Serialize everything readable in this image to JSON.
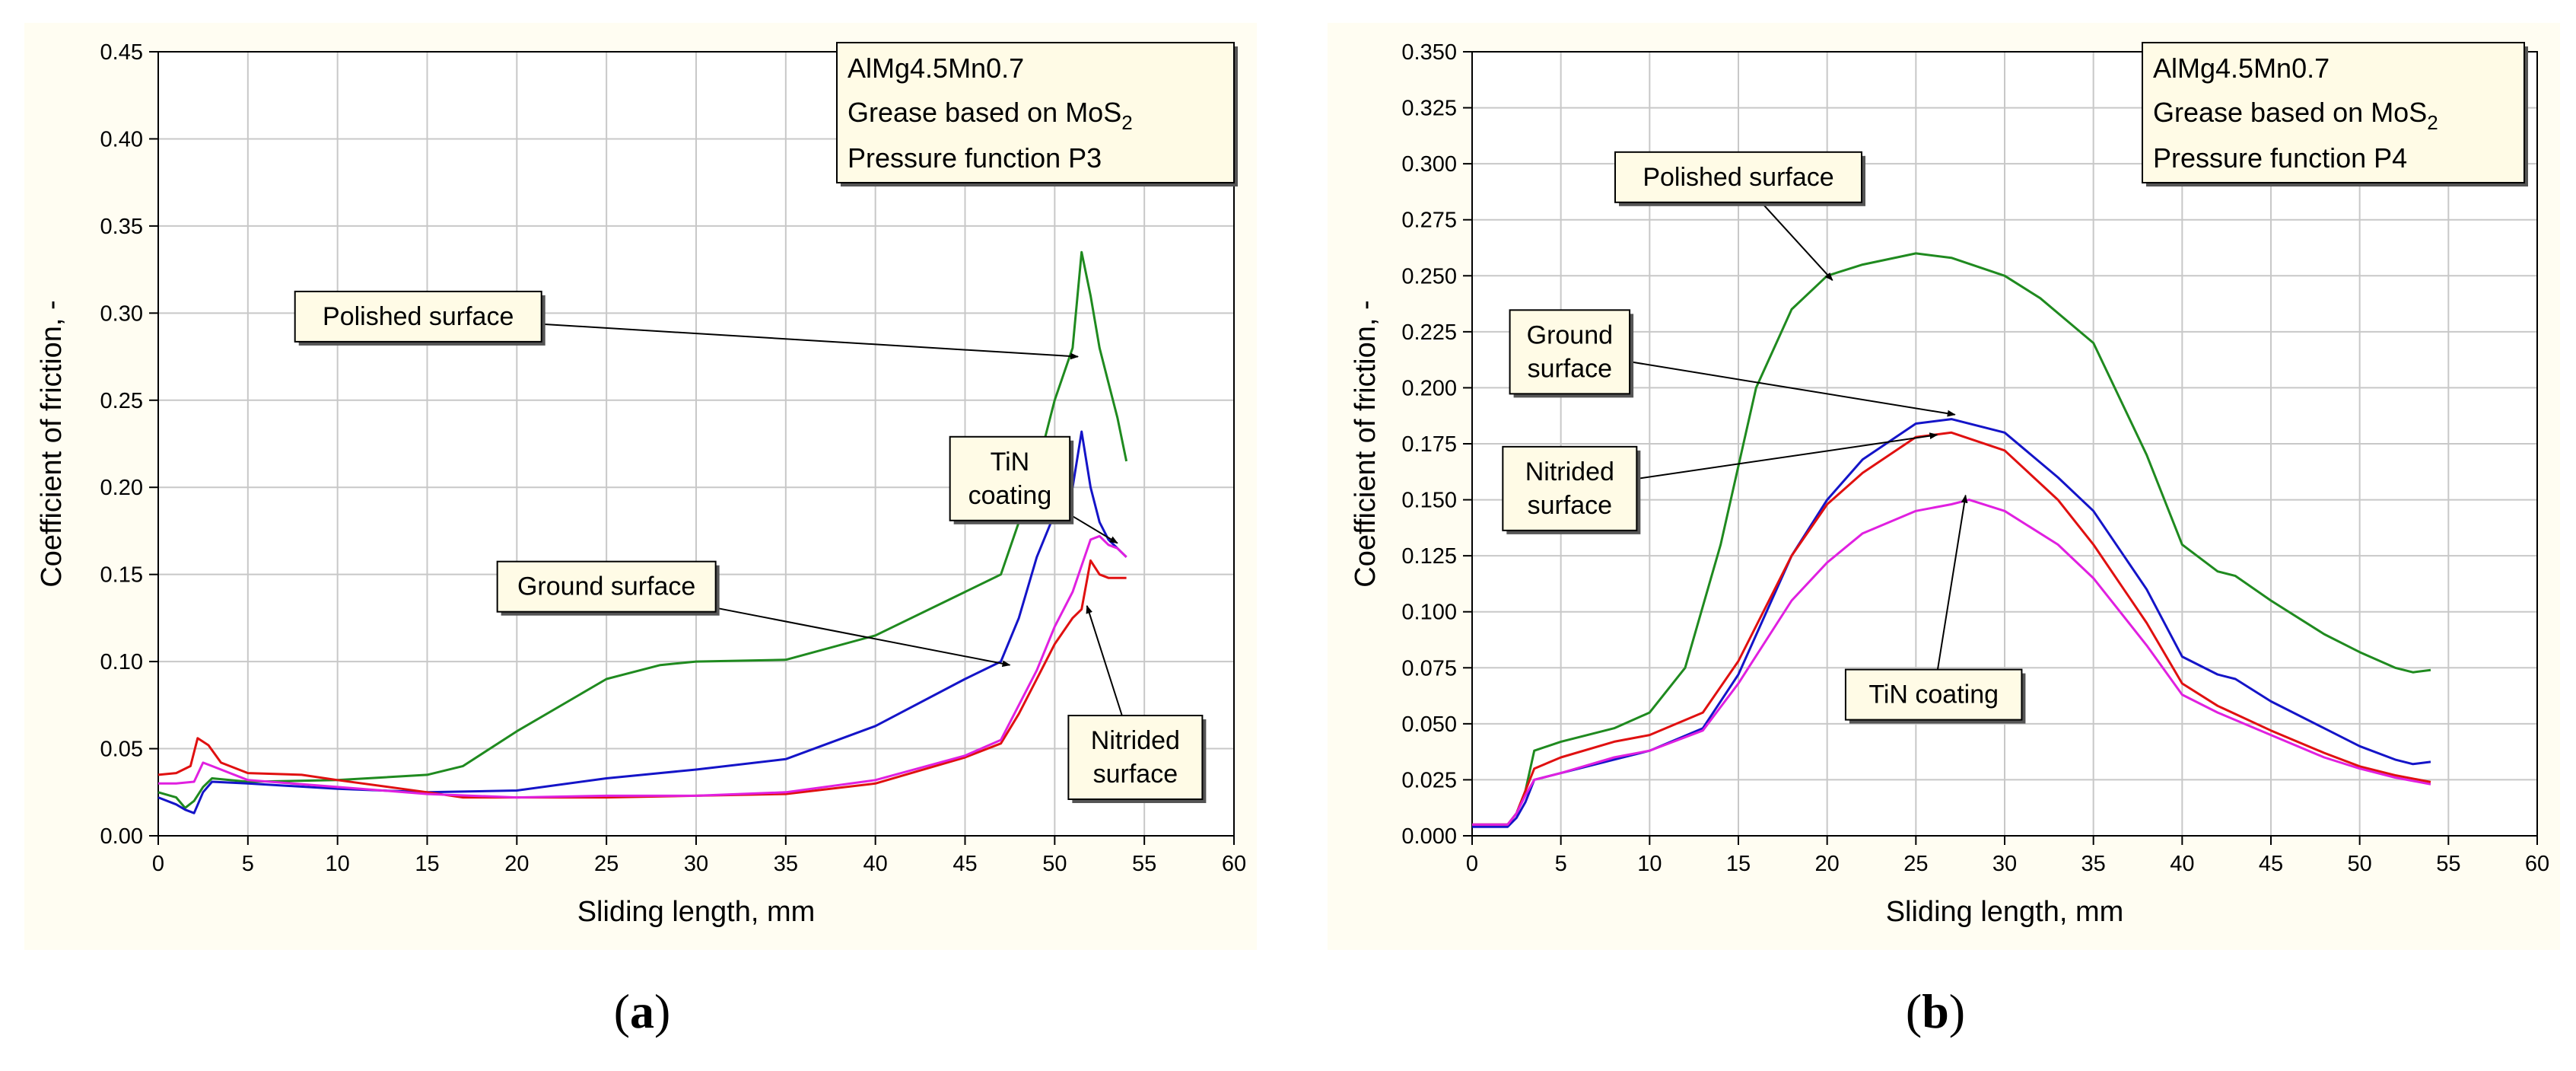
{
  "captions": [
    {
      "open": "(",
      "letter": "a",
      "close": ")"
    },
    {
      "open": "(",
      "letter": "b",
      "close": ")"
    }
  ],
  "chart_data": [
    {
      "type": "line",
      "panel": "a",
      "xlabel": "Sliding length, mm",
      "ylabel": "Coefficient of friction, -",
      "xlim": [
        0,
        60
      ],
      "ylim": [
        0,
        0.45
      ],
      "xticks": [
        0,
        5,
        10,
        15,
        20,
        25,
        30,
        35,
        40,
        45,
        50,
        55,
        60
      ],
      "yticks": [
        "0.00",
        "0.05",
        "0.10",
        "0.15",
        "0.20",
        "0.25",
        "0.30",
        "0.35",
        "0.40",
        "0.45"
      ],
      "legend_lines": [
        "AlMg4.5Mn0.7",
        "Grease based on MoS",
        "2",
        "Pressure function P3"
      ],
      "colors": {
        "polished": "#1f8a1f",
        "ground": "#1414c8",
        "nitrided": "#e01010",
        "tin": "#e020e0"
      },
      "series": [
        {
          "name": "Polished surface",
          "color_key": "polished",
          "x": [
            0,
            1,
            1.5,
            2,
            2.5,
            3,
            5,
            10,
            15,
            17,
            20,
            25,
            28,
            30,
            35,
            40,
            45,
            47,
            48,
            49,
            50,
            51,
            51.5,
            52,
            52.5,
            53,
            53.5,
            54
          ],
          "y": [
            0.025,
            0.022,
            0.016,
            0.02,
            0.028,
            0.033,
            0.031,
            0.032,
            0.035,
            0.04,
            0.06,
            0.09,
            0.098,
            0.1,
            0.101,
            0.115,
            0.14,
            0.15,
            0.18,
            0.21,
            0.25,
            0.28,
            0.335,
            0.31,
            0.28,
            0.26,
            0.24,
            0.215
          ]
        },
        {
          "name": "Ground surface",
          "color_key": "ground",
          "x": [
            0,
            1,
            1.5,
            2,
            2.5,
            3,
            5,
            10,
            15,
            20,
            25,
            30,
            35,
            40,
            45,
            47,
            48,
            49,
            50,
            51,
            51.5,
            52,
            52.5,
            53,
            53.5,
            54
          ],
          "y": [
            0.022,
            0.018,
            0.015,
            0.013,
            0.025,
            0.031,
            0.03,
            0.027,
            0.025,
            0.026,
            0.033,
            0.038,
            0.044,
            0.063,
            0.09,
            0.1,
            0.125,
            0.16,
            0.185,
            0.2,
            0.232,
            0.2,
            0.18,
            0.17,
            0.165,
            0.16
          ]
        },
        {
          "name": "Nitrided surface",
          "color_key": "nitrided",
          "x": [
            0,
            1,
            1.8,
            2.2,
            2.8,
            3.5,
            5,
            8,
            10,
            15,
            17,
            20,
            25,
            30,
            35,
            40,
            45,
            47,
            48,
            49,
            50,
            51,
            51.5,
            52,
            52.5,
            53,
            54
          ],
          "y": [
            0.035,
            0.036,
            0.04,
            0.056,
            0.052,
            0.042,
            0.036,
            0.035,
            0.032,
            0.025,
            0.022,
            0.022,
            0.022,
            0.023,
            0.024,
            0.03,
            0.045,
            0.053,
            0.07,
            0.09,
            0.11,
            0.125,
            0.13,
            0.158,
            0.15,
            0.148,
            0.148
          ]
        },
        {
          "name": "TiN coating",
          "color_key": "tin",
          "x": [
            0,
            1,
            2,
            2.5,
            3,
            5,
            10,
            15,
            20,
            25,
            30,
            35,
            40,
            45,
            47,
            48,
            49,
            50,
            51,
            51.5,
            52,
            52.5,
            53,
            53.5,
            54
          ],
          "y": [
            0.03,
            0.03,
            0.031,
            0.042,
            0.04,
            0.032,
            0.028,
            0.024,
            0.022,
            0.023,
            0.023,
            0.025,
            0.032,
            0.046,
            0.055,
            0.075,
            0.095,
            0.12,
            0.14,
            0.155,
            0.17,
            0.172,
            0.167,
            0.165,
            0.16
          ]
        }
      ],
      "annotations": [
        {
          "lines": [
            "Polished surface"
          ],
          "target": [
            51.3,
            0.275
          ],
          "label_at": [
            14.5,
            0.298
          ],
          "series": "polished"
        },
        {
          "lines": [
            "TiN",
            "coating"
          ],
          "target": [
            53.5,
            0.168
          ],
          "label_at": [
            47.5,
            0.205
          ],
          "series": "tin"
        },
        {
          "lines": [
            "Ground surface"
          ],
          "target": [
            47.5,
            0.098
          ],
          "label_at": [
            25,
            0.143
          ],
          "series": "ground"
        },
        {
          "lines": [
            "Nitrided",
            "surface"
          ],
          "target": [
            51.8,
            0.132
          ],
          "label_at": [
            54.5,
            0.045
          ],
          "series": "nitrided"
        }
      ]
    },
    {
      "type": "line",
      "panel": "b",
      "xlabel": "Sliding length, mm",
      "ylabel": "Coefficient of friction, -",
      "xlim": [
        0,
        60
      ],
      "ylim": [
        0,
        0.35
      ],
      "xticks": [
        0,
        5,
        10,
        15,
        20,
        25,
        30,
        35,
        40,
        45,
        50,
        55,
        60
      ],
      "yticks": [
        "0.000",
        "0.025",
        "0.050",
        "0.075",
        "0.100",
        "0.125",
        "0.150",
        "0.175",
        "0.200",
        "0.225",
        "0.250",
        "0.275",
        "0.300",
        "0.325",
        "0.350"
      ],
      "legend_lines": [
        "AlMg4.5Mn0.7",
        "Grease based on MoS",
        "2",
        "Pressure function P4"
      ],
      "colors": {
        "polished": "#1f8a1f",
        "ground": "#1414c8",
        "nitrided": "#e01010",
        "tin": "#e020e0"
      },
      "series": [
        {
          "name": "Polished surface",
          "color_key": "polished",
          "x": [
            0,
            2,
            2.5,
            3,
            3.5,
            5,
            8,
            10,
            12,
            14,
            16,
            18,
            20,
            22,
            25,
            27,
            30,
            32,
            35,
            38,
            40,
            42,
            43,
            45,
            48,
            50,
            52,
            53,
            54
          ],
          "y": [
            0.005,
            0.005,
            0.01,
            0.02,
            0.038,
            0.042,
            0.048,
            0.055,
            0.075,
            0.13,
            0.2,
            0.235,
            0.25,
            0.255,
            0.26,
            0.258,
            0.25,
            0.24,
            0.22,
            0.17,
            0.13,
            0.118,
            0.116,
            0.105,
            0.09,
            0.082,
            0.075,
            0.073,
            0.074
          ]
        },
        {
          "name": "Ground surface",
          "color_key": "ground",
          "x": [
            0,
            2,
            2.5,
            3,
            3.5,
            5,
            8,
            10,
            13,
            15,
            18,
            20,
            22,
            25,
            27,
            30,
            33,
            35,
            38,
            40,
            42,
            43,
            45,
            48,
            50,
            52,
            53,
            54
          ],
          "y": [
            0.004,
            0.004,
            0.008,
            0.015,
            0.025,
            0.028,
            0.034,
            0.038,
            0.048,
            0.072,
            0.125,
            0.15,
            0.168,
            0.184,
            0.186,
            0.18,
            0.16,
            0.145,
            0.11,
            0.08,
            0.072,
            0.07,
            0.06,
            0.048,
            0.04,
            0.034,
            0.032,
            0.033
          ]
        },
        {
          "name": "Nitrided surface",
          "color_key": "nitrided",
          "x": [
            0,
            2,
            2.5,
            3,
            3.5,
            5,
            8,
            10,
            13,
            15,
            18,
            20,
            22,
            25,
            27,
            30,
            33,
            35,
            38,
            40,
            42,
            45,
            48,
            50,
            52,
            54
          ],
          "y": [
            0.005,
            0.005,
            0.01,
            0.02,
            0.03,
            0.035,
            0.042,
            0.045,
            0.055,
            0.078,
            0.125,
            0.148,
            0.162,
            0.178,
            0.18,
            0.172,
            0.15,
            0.13,
            0.095,
            0.068,
            0.058,
            0.047,
            0.037,
            0.031,
            0.027,
            0.024
          ]
        },
        {
          "name": "TiN coating",
          "color_key": "tin",
          "x": [
            0,
            2,
            2.5,
            3,
            3.5,
            5,
            8,
            10,
            13,
            15,
            18,
            20,
            22,
            25,
            27,
            28,
            30,
            33,
            35,
            38,
            40,
            42,
            45,
            48,
            50,
            52,
            54
          ],
          "y": [
            0.005,
            0.005,
            0.01,
            0.018,
            0.025,
            0.028,
            0.035,
            0.038,
            0.047,
            0.068,
            0.105,
            0.122,
            0.135,
            0.145,
            0.148,
            0.15,
            0.145,
            0.13,
            0.115,
            0.085,
            0.063,
            0.055,
            0.045,
            0.035,
            0.03,
            0.026,
            0.023
          ]
        }
      ],
      "annotations": [
        {
          "lines": [
            "Polished surface"
          ],
          "target": [
            20.3,
            0.248
          ],
          "label_at": [
            15,
            0.294
          ],
          "series": "polished"
        },
        {
          "lines": [
            "Ground",
            "surface"
          ],
          "target": [
            27.2,
            0.188
          ],
          "label_at": [
            5.5,
            0.216
          ],
          "series": "ground"
        },
        {
          "lines": [
            "Nitrided",
            "surface"
          ],
          "target": [
            26.2,
            0.179
          ],
          "label_at": [
            5.5,
            0.155
          ],
          "series": "nitrided"
        },
        {
          "lines": [
            "TiN coating"
          ],
          "target": [
            27.8,
            0.152
          ],
          "label_at": [
            26,
            0.063
          ],
          "series": "tin"
        }
      ]
    }
  ]
}
